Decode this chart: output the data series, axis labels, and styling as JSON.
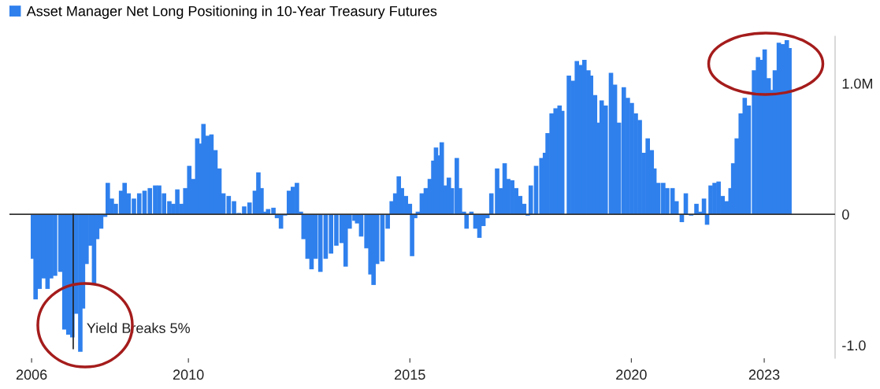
{
  "chart_data": {
    "type": "bar",
    "legend": "top left",
    "x": [
      2006.49,
      2006.55,
      2006.64,
      2006.73,
      2006.82,
      2006.9,
      2006.99,
      2007.11,
      2007.2,
      2007.29,
      2007.38,
      2007.47,
      2007.56,
      2007.62,
      2007.7,
      2007.79,
      2007.87,
      2007.94,
      2008.03,
      2008.12,
      2008.18,
      2008.27,
      2008.36,
      2008.48,
      2008.56,
      2008.65,
      2008.77,
      2008.89,
      2009.01,
      2009.13,
      2009.25,
      2009.34,
      2009.45,
      2009.57,
      2009.66,
      2009.75,
      2009.84,
      2009.93,
      2010.02,
      2010.11,
      2010.2,
      2010.27,
      2010.34,
      2010.43,
      2010.52,
      2010.61,
      2010.7,
      2010.79,
      2010.91,
      2011.03,
      2011.14,
      2011.26,
      2011.38,
      2011.5,
      2011.58,
      2011.65,
      2011.71,
      2011.8,
      2011.92,
      2012.0,
      2012.09,
      2012.18,
      2012.27,
      2012.36,
      2012.45,
      2012.54,
      2012.6,
      2012.69,
      2012.78,
      2012.87,
      2012.98,
      2013.1,
      2013.22,
      2013.34,
      2013.46,
      2013.55,
      2013.64,
      2013.75,
      2013.81,
      2013.9,
      2014.02,
      2014.11,
      2014.18,
      2014.26,
      2014.38,
      2014.5,
      2014.59,
      2014.67,
      2014.75,
      2014.82,
      2014.91,
      2015.0,
      2015.05,
      2015.12,
      2015.18,
      2015.27,
      2015.36,
      2015.45,
      2015.53,
      2015.59,
      2015.65,
      2015.72,
      2015.8,
      2015.88,
      2015.95,
      2016.06,
      2016.13,
      2016.22,
      2016.28,
      2016.39,
      2016.48,
      2016.57,
      2016.66,
      2016.75,
      2016.84,
      2016.97,
      2017.05,
      2017.14,
      2017.22,
      2017.31,
      2017.4,
      2017.49,
      2017.58,
      2017.66,
      2017.73,
      2017.85,
      2017.97,
      2018.05,
      2018.11,
      2018.2,
      2018.29,
      2018.38,
      2018.44,
      2018.59,
      2018.68,
      2018.77,
      2018.86,
      2018.94,
      2019.03,
      2019.09,
      2019.18,
      2019.24,
      2019.33,
      2019.42,
      2019.54,
      2019.63,
      2019.72,
      2019.83,
      2019.92,
      2020.01,
      2020.1,
      2020.19,
      2020.28,
      2020.37,
      2020.46,
      2020.52,
      2020.61,
      2020.72,
      2020.81,
      2020.93,
      2021.02,
      2021.14,
      2021.23,
      2021.35,
      2021.47,
      2021.55,
      2021.64,
      2021.71,
      2021.79,
      2021.88,
      2021.97,
      2022.06,
      2022.15,
      2022.24,
      2022.3,
      2022.38,
      2022.47,
      2022.56,
      2022.65,
      2022.77,
      2022.86,
      2022.95,
      2023.01,
      2023.1,
      2023.17,
      2023.24,
      2023.33,
      2023.42,
      2023.51,
      2023.57
    ],
    "series": [
      {
        "name": "Asset Manager Net Long Positioning in 10-Year Treasury Futures",
        "color": "#2f80ed",
        "values": [
          -0.34,
          -0.65,
          -0.57,
          -0.49,
          -0.57,
          -0.49,
          -0.47,
          -0.44,
          -0.88,
          -0.92,
          -0.94,
          -0.76,
          -1.05,
          -0.72,
          -0.38,
          -0.24,
          -0.53,
          -0.19,
          -0.11,
          -0.02,
          0.24,
          0.12,
          0.08,
          0.18,
          0.24,
          0.16,
          0.12,
          0.16,
          0.18,
          0.2,
          0.22,
          0.22,
          0.16,
          0.1,
          0.08,
          0.19,
          0.08,
          0.2,
          0.37,
          0.27,
          0.58,
          0.54,
          0.69,
          0.6,
          0.61,
          0.49,
          0.35,
          0.16,
          0.14,
          0.1,
          0.01,
          0.06,
          0.09,
          0.18,
          0.32,
          0.2,
          0.02,
          0.04,
          0.05,
          -0.03,
          -0.11,
          -0.01,
          0.18,
          0.21,
          0.24,
          0.02,
          -0.19,
          -0.34,
          -0.42,
          -0.34,
          -0.44,
          -0.34,
          -0.3,
          -0.24,
          -0.22,
          -0.4,
          -0.11,
          -0.05,
          -0.07,
          -0.17,
          -0.26,
          -0.46,
          -0.54,
          -0.38,
          -0.36,
          -0.11,
          0.1,
          0.16,
          0.29,
          0.2,
          0.14,
          0.08,
          -0.32,
          -0.03,
          0.02,
          0.16,
          0.2,
          0.27,
          0.41,
          0.51,
          0.45,
          0.55,
          0.22,
          0.28,
          0.2,
          0.43,
          0.2,
          0.02,
          -0.11,
          0.02,
          -0.11,
          -0.18,
          -0.09,
          -0.03,
          0.16,
          0.35,
          0.2,
          0.39,
          0.27,
          0.26,
          0.2,
          0.14,
          0.08,
          -0.01,
          0.22,
          0.37,
          0.43,
          0.47,
          0.62,
          0.77,
          0.81,
          0.83,
          0.79,
          1.06,
          1.02,
          1.17,
          1.14,
          1.18,
          1.1,
          1.06,
          0.91,
          0.7,
          0.87,
          0.83,
          1.08,
          0.99,
          0.7,
          0.97,
          0.89,
          0.85,
          0.77,
          0.72,
          0.47,
          0.58,
          0.49,
          0.35,
          0.24,
          0.24,
          0.2,
          0.2,
          0.1,
          -0.06,
          0.16,
          -0.01,
          0.08,
          0.02,
          0.12,
          -0.08,
          0.22,
          0.24,
          0.25,
          0.14,
          0.1,
          0.2,
          0.39,
          0.58,
          0.77,
          0.89,
          0.83,
          1.1,
          1.2,
          1.18,
          1.26,
          1.04,
          0.95,
          1.1,
          1.31,
          1.3,
          1.33,
          1.27
        ]
      }
    ],
    "xlim": [
      2005.96,
      2024.6
    ],
    "xticks": [
      {
        "value": 2006.46,
        "label": "2006"
      },
      2010,
      2015,
      2020,
      2023
    ],
    "ylim": [
      -1.1,
      1.36
    ],
    "yticks": [
      {
        "value": 1,
        "label": "1.0M"
      },
      0,
      {
        "value": -1,
        "label": "-1.0"
      }
    ],
    "ref_lines": [
      {
        "axis": "y",
        "value": 0,
        "color": "#333333"
      },
      {
        "axis": "x",
        "value": 2007.4,
        "label": "Yield Breaks 5%",
        "color": "#222222"
      }
    ],
    "grid": false
  }
}
